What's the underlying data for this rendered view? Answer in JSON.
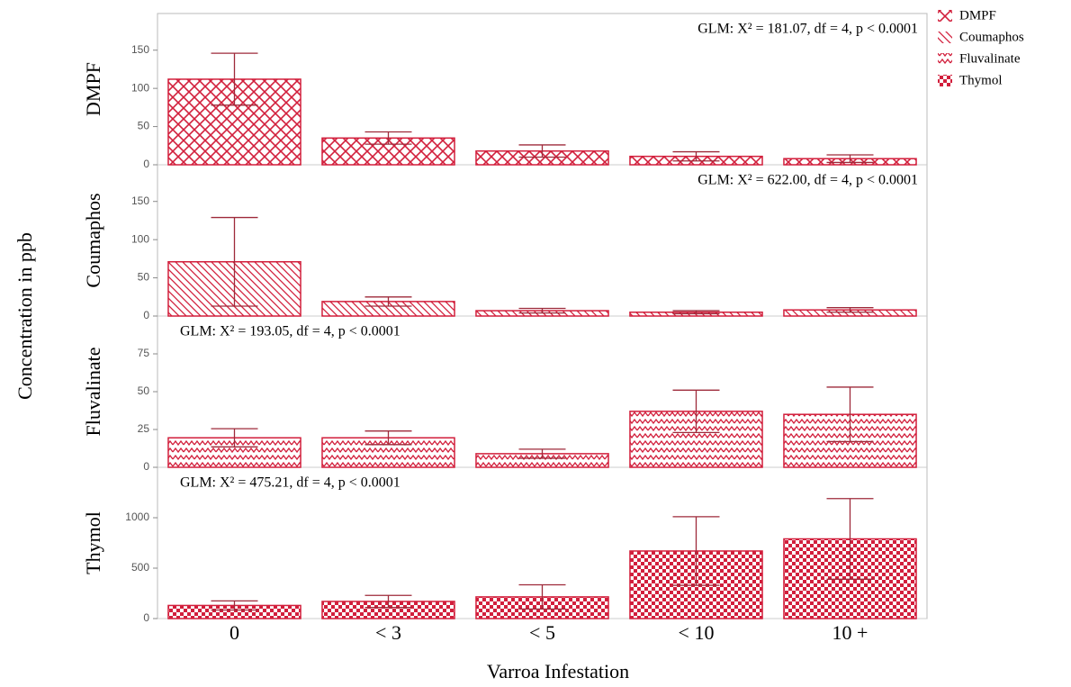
{
  "figure": {
    "xlabel": "Varroa Infestation",
    "ylabel": "Concentration in ppb"
  },
  "chart_data": [
    {
      "type": "bar",
      "ylabel": "DMPF",
      "annotation": "GLM: X² = 181.07, df = 4, p < 0.0001",
      "annotation_position": "right",
      "categories": [
        "0",
        "< 3",
        "< 5",
        "< 10",
        "10 +"
      ],
      "series": [
        {
          "name": "DMPF",
          "color": "#d21f3c",
          "pattern": "crosshatch",
          "values": [
            112,
            35,
            18,
            11,
            8
          ],
          "errors": [
            34,
            8,
            8,
            6,
            5
          ]
        }
      ],
      "ylim": [
        0,
        198
      ],
      "yticks": [
        0,
        50,
        100,
        150
      ]
    },
    {
      "type": "bar",
      "ylabel": "Coumaphos",
      "annotation": "GLM: X² = 622.00, df = 4, p < 0.0001",
      "annotation_position": "right",
      "categories": [
        "0",
        "< 3",
        "< 5",
        "< 10",
        "10 +"
      ],
      "series": [
        {
          "name": "Coumaphos",
          "color": "#d21f3c",
          "pattern": "diagonal",
          "values": [
            71,
            19,
            7,
            5,
            8
          ],
          "errors": [
            58,
            6,
            3,
            2,
            3
          ]
        }
      ],
      "ylim": [
        0,
        198
      ],
      "yticks": [
        0,
        50,
        100,
        150
      ]
    },
    {
      "type": "bar",
      "ylabel": "Fluvalinate",
      "annotation": "GLM: X² = 193.05, df = 4, p < 0.0001",
      "annotation_position": "left",
      "categories": [
        "0",
        "< 3",
        "< 5",
        "< 10",
        "10 +"
      ],
      "series": [
        {
          "name": "Fluvalinate",
          "color": "#d21f3c",
          "pattern": "zigzag",
          "values": [
            19.5,
            19.5,
            9,
            37,
            35
          ],
          "errors": [
            6,
            4.5,
            3,
            14,
            18
          ]
        }
      ],
      "ylim": [
        0,
        100
      ],
      "yticks": [
        0,
        25,
        50,
        75
      ]
    },
    {
      "type": "bar",
      "ylabel": "Thymol",
      "annotation": "GLM: X² = 475.21, df = 4, p < 0.0001",
      "annotation_position": "left",
      "categories": [
        "0",
        "< 3",
        "< 5",
        "< 10",
        "10 +"
      ],
      "series": [
        {
          "name": "Thymol",
          "color": "#d21f3c",
          "pattern": "checker",
          "values": [
            130,
            170,
            215,
            670,
            790
          ],
          "errors": [
            45,
            60,
            120,
            340,
            400
          ]
        }
      ],
      "ylim": [
        0,
        1500
      ],
      "yticks": [
        0,
        500,
        1000
      ]
    }
  ]
}
